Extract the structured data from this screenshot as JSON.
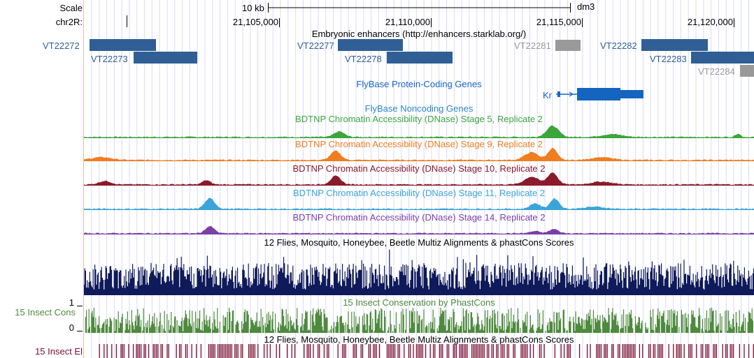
{
  "ruler": {
    "scale_label": "Scale",
    "chrom_label": "chr2R:",
    "scale_bar_label": "10 kb",
    "assembly": "dm3",
    "positions": [
      "21,105,000",
      "21,110,000",
      "21,115,000",
      "21,120,000"
    ]
  },
  "enhancers": {
    "title": "Embryonic enhancers (http://enhancers.starklab.org/)",
    "blue_color": "#2f5f95",
    "gray_color": "#999999",
    "items": [
      {
        "name": "VT22272",
        "color": "blue"
      },
      {
        "name": "VT22273",
        "color": "blue"
      },
      {
        "name": "VT22277",
        "color": "blue"
      },
      {
        "name": "VT22278",
        "color": "blue"
      },
      {
        "name": "VT22281",
        "color": "gray"
      },
      {
        "name": "VT22282",
        "color": "blue"
      },
      {
        "name": "VT22283",
        "color": "blue"
      },
      {
        "name": "VT22284",
        "color": "gray"
      }
    ]
  },
  "genes": {
    "title": "FlyBase Protein-Coding Genes",
    "gene_name": "Kr",
    "color": "#1565c0"
  },
  "noncoding": {
    "title": "FlyBase Noncoding Genes",
    "color": "#2e86c8"
  },
  "dnase_tracks": [
    {
      "title": "BDTNP Chromatin Accessibility (DNase) Stage 5, Replicate 2",
      "color": "#3ca53c"
    },
    {
      "title": "BDTNP Chromatin Accessibility (DNase) Stage 9, Replicate 2",
      "color": "#f07d1e"
    },
    {
      "title": "BDTNP Chromatin Accessibility (DNase) Stage 10, Replicate 2",
      "color": "#8b1a2a"
    },
    {
      "title": "BDTNP Chromatin Accessibility (DNase) Stage 11, Replicate 2",
      "color": "#3aa5d8"
    },
    {
      "title": "BDTNP Chromatin Accessibility (DNase) Stage 14, Replicate 2",
      "color": "#7b3fa8"
    }
  ],
  "multiz": {
    "title": "12 Flies, Mosquito, Honeybee, Beetle Multiz Alignments & phastCons Scores",
    "color": "#0f1a5a"
  },
  "insect_cons": {
    "side_label": "15 Insect Cons",
    "title": "15 Insect Conservation by PhastCons",
    "axis_top": "1",
    "axis_bottom": "0",
    "color": "#4e8a3e"
  },
  "insect_el": {
    "side_label": "15 Insect El",
    "title": "12 Flies, Mosquito, Honeybee, Beetle Multiz Alignments & phastCons Scores",
    "color": "#7a1030"
  }
}
